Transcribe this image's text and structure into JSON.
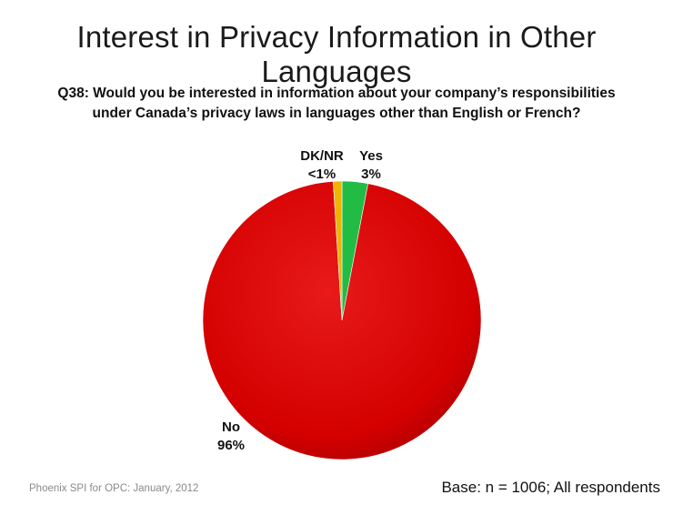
{
  "slide": {
    "title": "Interest in Privacy Information in Other Languages",
    "question_line1": "Q38: Would you be interested in information about your company’s responsibilities",
    "question_line2": "under Canada’s privacy laws in languages other than English or French?",
    "footer_left": "Phoenix SPI for OPC: January, 2012",
    "footer_right": "Base: n = 1006; All respondents"
  },
  "colors": {
    "no": "#dd0000",
    "yes": "#22bb44",
    "dknr": "#f0b400"
  },
  "chart_data": {
    "type": "pie",
    "slices": [
      {
        "name": "No",
        "value": 96,
        "label": "96%",
        "color": "#dd0000"
      },
      {
        "name": "Yes",
        "value": 3,
        "label": "3%",
        "color": "#22bb44"
      },
      {
        "name": "DK/NR",
        "value": 1,
        "label": "<1%",
        "color": "#f0b400"
      }
    ]
  }
}
